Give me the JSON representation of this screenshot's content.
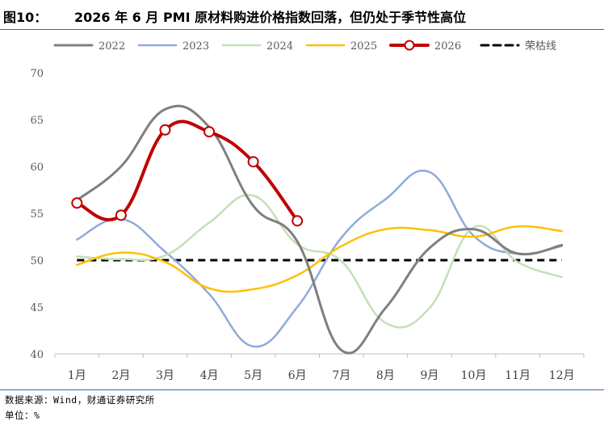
{
  "header": {
    "figure_no": "图10：",
    "title": "2026 年 6 月 PMI 原材料购进价格指数回落，但仍处于季节性高位"
  },
  "footer": {
    "source": "数据来源：Wind，财通证券研究所",
    "unit": "单位：%"
  },
  "chart_data": {
    "type": "line",
    "categories": [
      "1月",
      "2月",
      "3月",
      "4月",
      "5月",
      "6月",
      "7月",
      "8月",
      "9月",
      "10月",
      "11月",
      "12月"
    ],
    "ylim": [
      40,
      70
    ],
    "yticks": [
      40,
      45,
      50,
      55,
      60,
      65,
      70
    ],
    "grid": false,
    "legend_position": "top",
    "series": [
      {
        "name": "2022",
        "color": "#7f7f7f",
        "width": 3,
        "markers": false,
        "dash": false,
        "values": [
          56.4,
          60.0,
          66.1,
          64.2,
          55.8,
          52.0,
          40.4,
          44.9,
          51.3,
          53.3,
          50.7,
          51.6
        ]
      },
      {
        "name": "2023",
        "color": "#8faadc",
        "width": 2.5,
        "markers": false,
        "dash": false,
        "values": [
          52.2,
          54.4,
          50.9,
          46.4,
          40.8,
          45.0,
          52.4,
          56.5,
          59.4,
          52.6,
          50.7,
          51.5
        ]
      },
      {
        "name": "2024",
        "color": "#c5e0b4",
        "width": 2.5,
        "markers": false,
        "dash": false,
        "values": [
          50.4,
          50.1,
          50.5,
          54.0,
          56.9,
          51.7,
          49.9,
          43.3,
          44.9,
          53.5,
          49.8,
          48.2
        ]
      },
      {
        "name": "2025",
        "color": "#ffc000",
        "width": 2.5,
        "markers": false,
        "dash": false,
        "values": [
          49.5,
          50.8,
          49.8,
          47.0,
          46.9,
          48.4,
          51.5,
          53.3,
          53.2,
          52.5,
          53.6,
          53.1
        ]
      },
      {
        "name": "2026",
        "color": "#c00000",
        "width": 4,
        "markers": true,
        "dash": false,
        "values": [
          56.1,
          54.8,
          63.9,
          63.7,
          60.5,
          54.2,
          null,
          null,
          null,
          null,
          null,
          null
        ]
      },
      {
        "name": "荣枯线",
        "color": "#000000",
        "width": 3,
        "markers": false,
        "dash": true,
        "values": [
          50,
          50,
          50,
          50,
          50,
          50,
          50,
          50,
          50,
          50,
          50,
          50
        ]
      }
    ]
  }
}
